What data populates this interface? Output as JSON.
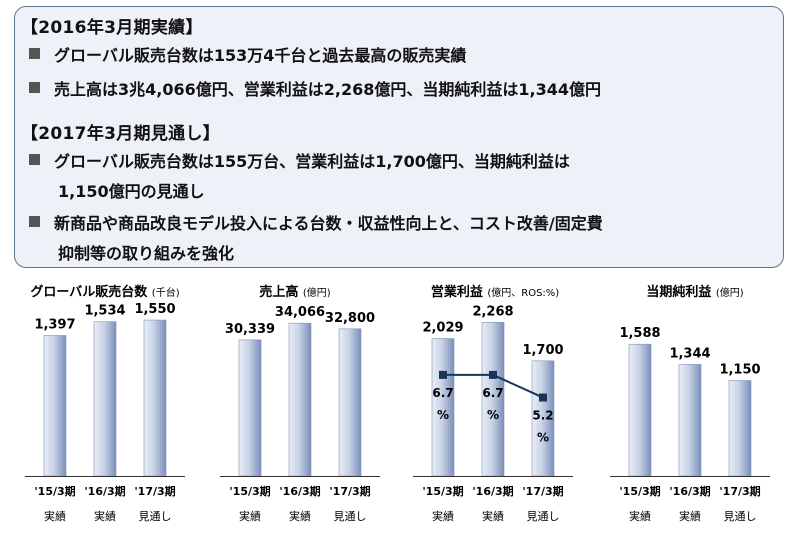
{
  "summary": {
    "h1": "【2016年3月期実績】",
    "b1": "グローバル販売台数は153万4千台と過去最高の販売実績",
    "b2": "売上高は3兆4,066億円、営業利益は2,268億円、当期純利益は1,344億円",
    "h2": "【2017年3月期見通し】",
    "b3a": "グローバル販売台数は155万台、営業利益は1,700億円、当期純利益は",
    "b3b": "1,150億円の見通し",
    "b4a": "新商品や商品改良モデル投入による台数・収益性向上と、コスト改善/固定費",
    "b4b": "抑制等の取り組みを強化"
  },
  "colors": {
    "bar_light": "#e9eef7",
    "bar_dark": "#7b8fbb",
    "line": "#1b3556",
    "border": "#5d7591",
    "panel": "#eef2f8"
  },
  "chart_data": [
    {
      "type": "bar",
      "title": "グローバル販売台数",
      "unit": "(千台)",
      "categories": [
        "'15/3期",
        "'16/3期",
        "'17/3期"
      ],
      "sublabels": [
        "実績",
        "実績",
        "見通し"
      ],
      "values": [
        1397,
        1534,
        1550
      ],
      "labels": [
        "1,397",
        "1,534",
        "1,550"
      ],
      "ylim": [
        0,
        1650
      ]
    },
    {
      "type": "bar",
      "title": "売上高",
      "unit": "(億円)",
      "categories": [
        "'15/3期",
        "'16/3期",
        "'17/3期"
      ],
      "sublabels": [
        "実績",
        "実績",
        "見通し"
      ],
      "values": [
        30339,
        34066,
        32800
      ],
      "labels": [
        "30,339",
        "34,066",
        "32,800"
      ],
      "ylim": [
        0,
        37000
      ]
    },
    {
      "type": "bar",
      "title": "営業利益",
      "unit": "(億円、ROS:%)",
      "categories": [
        "'15/3期",
        "'16/3期",
        "'17/3期"
      ],
      "sublabels": [
        "実績",
        "実績",
        "見通し"
      ],
      "values": [
        2029,
        2268,
        1700
      ],
      "labels": [
        "2,029",
        "2,268",
        "1,700"
      ],
      "ylim": [
        0,
        2450
      ],
      "ros": {
        "values": [
          6.7,
          6.7,
          5.2
        ],
        "labels": [
          "6.7",
          "6.7",
          "5.2"
        ],
        "unit": "%",
        "ylim": [
          0,
          11
        ]
      }
    },
    {
      "type": "bar",
      "title": "当期純利益",
      "unit": "(億円)",
      "categories": [
        "'15/3期",
        "'16/3期",
        "'17/3期"
      ],
      "sublabels": [
        "実績",
        "実績",
        "見通し"
      ],
      "values": [
        1588,
        1344,
        1150
      ],
      "labels": [
        "1,588",
        "1,344",
        "1,150"
      ],
      "ylim": [
        0,
        2000
      ]
    }
  ]
}
